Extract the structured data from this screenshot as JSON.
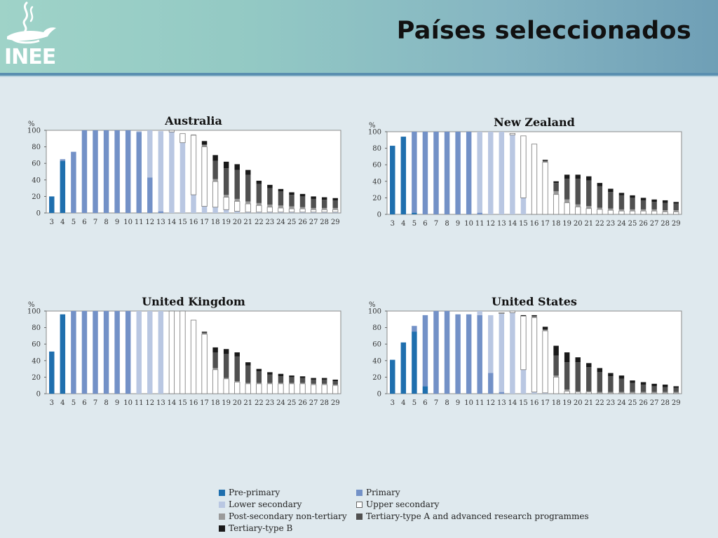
{
  "slide": {
    "title": "Países seleccionados",
    "logo_text": "INEE"
  },
  "colors": {
    "pre_primary": "#1f6fae",
    "primary": "#7391c7",
    "lower_secondary": "#b9c7e2",
    "upper_secondary": "#ffffff",
    "post_secondary": "#9a9a9a",
    "tertiary_a": "#505050",
    "tertiary_b": "#1a1a1a"
  },
  "legend": [
    {
      "key": "pre_primary",
      "label": "Pre-primary"
    },
    {
      "key": "primary",
      "label": "Primary"
    },
    {
      "key": "lower_secondary",
      "label": "Lower secondary"
    },
    {
      "key": "upper_secondary",
      "label": "Upper secondary"
    },
    {
      "key": "post_secondary",
      "label": "Post-secondary non-tertiary"
    },
    {
      "key": "tertiary_a",
      "label": "Tertiary-type A and advanced research programmes"
    },
    {
      "key": "tertiary_b",
      "label": "Tertiary-type B"
    }
  ],
  "chart_data": [
    {
      "type": "bar",
      "stacked": true,
      "title": "Australia",
      "ylabel": "%",
      "ylim": [
        0,
        100
      ],
      "yticks": [
        "0",
        "20",
        "40",
        "60",
        "80",
        "100"
      ],
      "categories": [
        "3",
        "4",
        "5",
        "6",
        "7",
        "8",
        "9",
        "10",
        "11",
        "12",
        "13",
        "14",
        "15",
        "16",
        "17",
        "18",
        "19",
        "20",
        "21",
        "22",
        "23",
        "24",
        "25",
        "26",
        "27",
        "28",
        "29"
      ],
      "series": [
        {
          "name": "Pre-primary",
          "key": "pre_primary",
          "values": [
            20,
            63,
            0,
            0,
            0,
            0,
            0,
            0,
            0,
            0,
            0,
            0,
            0,
            0,
            0,
            0,
            0,
            0,
            0,
            0,
            0,
            0,
            0,
            0,
            0,
            0,
            0
          ]
        },
        {
          "name": "Primary",
          "key": "primary",
          "values": [
            0,
            2,
            74,
            100,
            100,
            100,
            100,
            100,
            98,
            43,
            2,
            0,
            0,
            0,
            0,
            0,
            0,
            0,
            0,
            0,
            0,
            0,
            0,
            0,
            0,
            0,
            0
          ]
        },
        {
          "name": "Lower secondary",
          "key": "lower_secondary",
          "values": [
            0,
            0,
            0,
            0,
            0,
            0,
            0,
            0,
            1,
            57,
            97,
            98,
            85,
            22,
            8,
            7,
            4,
            2,
            1,
            1,
            1,
            1,
            1,
            1,
            1,
            1,
            1
          ]
        },
        {
          "name": "Upper secondary",
          "key": "upper_secondary",
          "values": [
            0,
            0,
            0,
            0,
            0,
            0,
            0,
            0,
            0,
            0,
            0,
            2,
            11,
            72,
            72,
            31,
            15,
            12,
            10,
            8,
            6,
            5,
            4,
            4,
            3,
            3,
            3
          ]
        },
        {
          "name": "Post-secondary non-tertiary",
          "key": "post_secondary",
          "values": [
            0,
            0,
            0,
            0,
            0,
            0,
            0,
            0,
            0,
            0,
            0,
            0,
            0,
            1,
            2,
            3,
            3,
            3,
            3,
            3,
            3,
            3,
            3,
            2,
            2,
            2,
            2
          ]
        },
        {
          "name": "Tertiary-type A and advanced research programmes",
          "key": "tertiary_a",
          "values": [
            0,
            0,
            0,
            0,
            0,
            0,
            0,
            0,
            0,
            0,
            0,
            0,
            0,
            0,
            1,
            22,
            32,
            35,
            32,
            23,
            20,
            17,
            14,
            13,
            11,
            10,
            9
          ]
        },
        {
          "name": "Tertiary-type B",
          "key": "tertiary_b",
          "values": [
            0,
            0,
            0,
            0,
            0,
            0,
            0,
            0,
            0,
            0,
            0,
            0,
            0,
            0,
            4,
            7,
            8,
            7,
            6,
            4,
            4,
            3,
            3,
            3,
            3,
            3,
            3
          ]
        }
      ]
    },
    {
      "type": "bar",
      "stacked": true,
      "title": "New Zealand",
      "ylabel": "%",
      "ylim": [
        0,
        100
      ],
      "yticks": [
        "0",
        "20",
        "40",
        "60",
        "80",
        "100"
      ],
      "categories": [
        "3",
        "4",
        "5",
        "6",
        "7",
        "8",
        "9",
        "10",
        "11",
        "12",
        "13",
        "14",
        "15",
        "16",
        "17",
        "18",
        "19",
        "20",
        "21",
        "22",
        "23",
        "24",
        "25",
        "26",
        "27",
        "28",
        "29"
      ],
      "series": [
        {
          "name": "Pre-primary",
          "key": "pre_primary",
          "values": [
            83,
            94,
            2,
            0,
            0,
            0,
            0,
            0,
            0,
            0,
            0,
            0,
            0,
            0,
            0,
            0,
            0,
            0,
            0,
            0,
            0,
            0,
            0,
            0,
            0,
            0,
            0
          ]
        },
        {
          "name": "Primary",
          "key": "primary",
          "values": [
            0,
            0,
            98,
            100,
            100,
            100,
            100,
            100,
            2,
            0,
            0,
            0,
            0,
            0,
            0,
            0,
            0,
            0,
            0,
            0,
            0,
            0,
            0,
            0,
            0,
            0,
            0
          ]
        },
        {
          "name": "Lower secondary",
          "key": "lower_secondary",
          "values": [
            0,
            0,
            0,
            0,
            0,
            0,
            0,
            0,
            98,
            100,
            100,
            96,
            20,
            0,
            0,
            0,
            0,
            0,
            0,
            0,
            0,
            0,
            0,
            0,
            0,
            0,
            0
          ]
        },
        {
          "name": "Upper secondary",
          "key": "upper_secondary",
          "values": [
            0,
            0,
            0,
            0,
            0,
            0,
            0,
            0,
            0,
            0,
            0,
            2,
            75,
            85,
            63,
            24,
            14,
            9,
            7,
            6,
            5,
            4,
            4,
            4,
            4,
            3,
            3
          ]
        },
        {
          "name": "Post-secondary non-tertiary",
          "key": "post_secondary",
          "values": [
            0,
            0,
            0,
            0,
            0,
            0,
            0,
            0,
            0,
            0,
            0,
            0,
            0,
            0,
            1,
            4,
            4,
            3,
            3,
            2,
            2,
            2,
            2,
            2,
            2,
            2,
            2
          ]
        },
        {
          "name": "Tertiary-type A and advanced research programmes",
          "key": "tertiary_a",
          "values": [
            0,
            0,
            0,
            0,
            0,
            0,
            0,
            0,
            0,
            0,
            0,
            0,
            0,
            0,
            1,
            10,
            25,
            31,
            31,
            26,
            20,
            17,
            14,
            11,
            9,
            9,
            8
          ]
        },
        {
          "name": "Tertiary-type B",
          "key": "tertiary_b",
          "values": [
            0,
            0,
            0,
            0,
            0,
            0,
            0,
            0,
            0,
            0,
            0,
            0,
            0,
            0,
            1,
            2,
            5,
            5,
            5,
            4,
            4,
            3,
            3,
            3,
            3,
            3,
            2
          ]
        }
      ]
    },
    {
      "type": "bar",
      "stacked": true,
      "title": "United Kingdom",
      "ylabel": "%",
      "ylim": [
        0,
        100
      ],
      "yticks": [
        "0",
        "20",
        "40",
        "60",
        "80",
        "100"
      ],
      "categories": [
        "3",
        "4",
        "5",
        "6",
        "7",
        "8",
        "9",
        "10",
        "11",
        "12",
        "13",
        "14",
        "15",
        "16",
        "17",
        "18",
        "19",
        "20",
        "21",
        "22",
        "23",
        "24",
        "25",
        "26",
        "27",
        "28",
        "29"
      ],
      "series": [
        {
          "name": "Pre-primary",
          "key": "pre_primary",
          "values": [
            51,
            96,
            0,
            0,
            0,
            0,
            0,
            0,
            0,
            0,
            0,
            0,
            0,
            0,
            0,
            0,
            0,
            0,
            0,
            0,
            0,
            0,
            0,
            0,
            0,
            0,
            0
          ]
        },
        {
          "name": "Primary",
          "key": "primary",
          "values": [
            0,
            0,
            100,
            100,
            100,
            100,
            100,
            100,
            0,
            0,
            0,
            0,
            0,
            0,
            0,
            0,
            0,
            0,
            0,
            0,
            0,
            0,
            0,
            0,
            0,
            0,
            0
          ]
        },
        {
          "name": "Lower secondary",
          "key": "lower_secondary",
          "values": [
            0,
            0,
            0,
            0,
            0,
            0,
            0,
            0,
            100,
            100,
            100,
            0,
            0,
            0,
            0,
            0,
            0,
            0,
            0,
            0,
            0,
            0,
            0,
            0,
            0,
            0,
            0
          ]
        },
        {
          "name": "Upper secondary",
          "key": "upper_secondary",
          "values": [
            0,
            0,
            0,
            0,
            0,
            0,
            0,
            0,
            0,
            0,
            0,
            100,
            100,
            89,
            72,
            29,
            18,
            14,
            12,
            12,
            12,
            12,
            12,
            12,
            11,
            11,
            10
          ]
        },
        {
          "name": "Post-secondary non-tertiary",
          "key": "post_secondary",
          "values": [
            0,
            0,
            0,
            0,
            0,
            0,
            0,
            0,
            0,
            0,
            0,
            0,
            0,
            0,
            1,
            2,
            1,
            1,
            1,
            1,
            1,
            1,
            1,
            1,
            1,
            1,
            1
          ]
        },
        {
          "name": "Tertiary-type A and advanced research programmes",
          "key": "tertiary_a",
          "values": [
            0,
            0,
            0,
            0,
            0,
            0,
            0,
            0,
            0,
            0,
            0,
            0,
            0,
            0,
            1,
            19,
            29,
            30,
            21,
            14,
            10,
            8,
            7,
            6,
            5,
            5,
            4
          ]
        },
        {
          "name": "Tertiary-type B",
          "key": "tertiary_b",
          "values": [
            0,
            0,
            0,
            0,
            0,
            0,
            0,
            0,
            0,
            0,
            0,
            0,
            0,
            0,
            1,
            6,
            6,
            5,
            4,
            3,
            3,
            3,
            2,
            2,
            2,
            2,
            2
          ]
        }
      ]
    },
    {
      "type": "bar",
      "stacked": true,
      "title": "United States",
      "ylabel": "%",
      "ylim": [
        0,
        100
      ],
      "yticks": [
        "0",
        "20",
        "40",
        "60",
        "80",
        "100"
      ],
      "categories": [
        "3",
        "4",
        "5",
        "6",
        "7",
        "8",
        "9",
        "10",
        "11",
        "12",
        "13",
        "14",
        "15",
        "16",
        "17",
        "18",
        "19",
        "20",
        "21",
        "22",
        "23",
        "24",
        "25",
        "26",
        "27",
        "28",
        "29"
      ],
      "series": [
        {
          "name": "Pre-primary",
          "key": "pre_primary",
          "values": [
            41,
            62,
            75,
            9,
            0,
            0,
            0,
            0,
            0,
            0,
            0,
            0,
            0,
            0,
            0,
            0,
            0,
            0,
            0,
            0,
            0,
            0,
            0,
            0,
            0,
            0,
            0
          ]
        },
        {
          "name": "Primary",
          "key": "primary",
          "values": [
            0,
            0,
            7,
            86,
            100,
            100,
            96,
            96,
            95,
            25,
            2,
            0,
            0,
            0,
            0,
            0,
            0,
            0,
            0,
            0,
            0,
            0,
            0,
            0,
            0,
            0,
            0
          ]
        },
        {
          "name": "Lower secondary",
          "key": "lower_secondary",
          "values": [
            0,
            0,
            0,
            0,
            0,
            0,
            0,
            0,
            5,
            70,
            95,
            98,
            29,
            2,
            1,
            0,
            0,
            0,
            0,
            0,
            0,
            0,
            0,
            0,
            0,
            0,
            0
          ]
        },
        {
          "name": "Upper secondary",
          "key": "upper_secondary",
          "values": [
            0,
            0,
            0,
            0,
            0,
            0,
            0,
            0,
            0,
            0,
            1,
            2,
            65,
            90,
            75,
            20,
            3,
            2,
            2,
            1,
            1,
            1,
            1,
            1,
            1,
            1,
            1
          ]
        },
        {
          "name": "Post-secondary non-tertiary",
          "key": "post_secondary",
          "values": [
            0,
            0,
            0,
            0,
            0,
            0,
            0,
            0,
            0,
            0,
            0,
            0,
            0,
            1,
            1,
            2,
            2,
            1,
            1,
            1,
            1,
            1,
            1,
            1,
            1,
            1,
            1
          ]
        },
        {
          "name": "Tertiary-type A and advanced research programmes",
          "key": "tertiary_a",
          "values": [
            0,
            0,
            0,
            0,
            0,
            0,
            0,
            0,
            0,
            0,
            0,
            0,
            0,
            1,
            1,
            24,
            33,
            35,
            29,
            24,
            19,
            16,
            11,
            9,
            7,
            6,
            5
          ]
        },
        {
          "name": "Tertiary-type B",
          "key": "tertiary_b",
          "values": [
            0,
            0,
            0,
            0,
            0,
            0,
            0,
            0,
            0,
            0,
            0,
            0,
            1,
            1,
            3,
            12,
            12,
            6,
            5,
            5,
            4,
            4,
            3,
            3,
            3,
            3,
            2
          ]
        }
      ]
    }
  ]
}
